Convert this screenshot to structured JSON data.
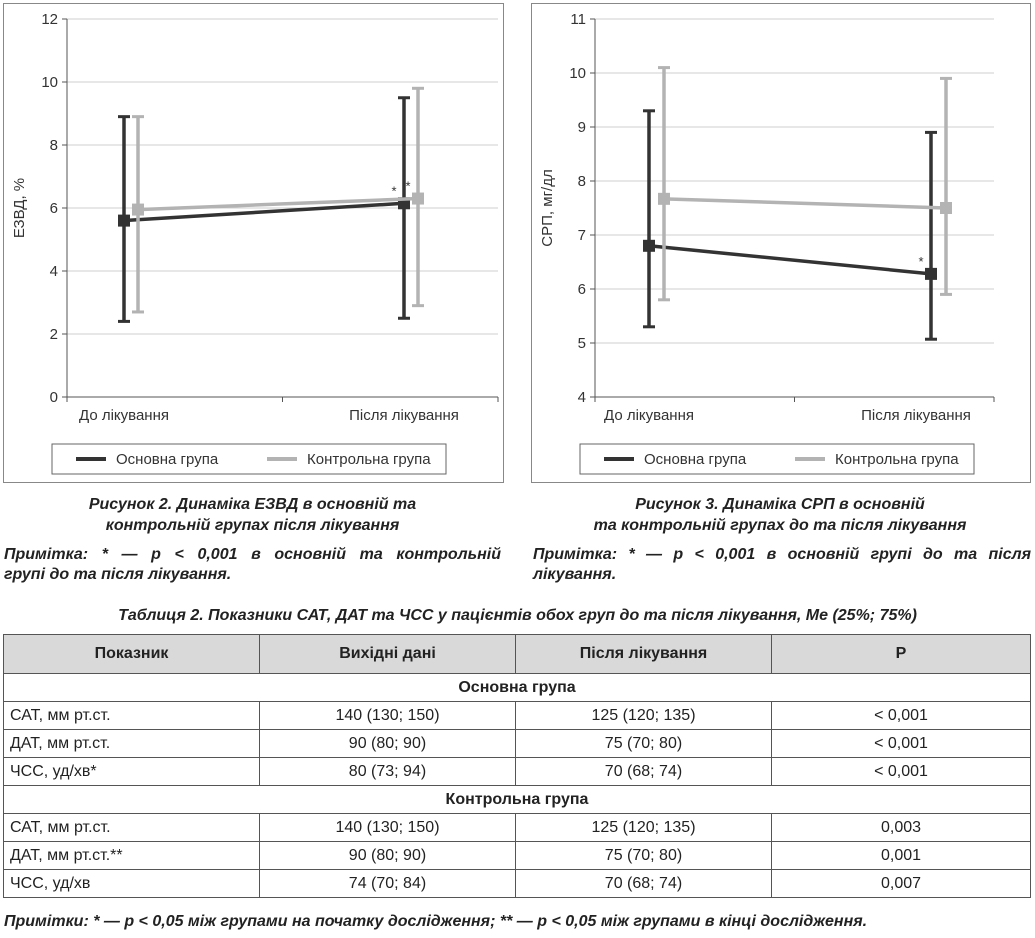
{
  "figure2": {
    "caption_line1": "Рисунок 2. Динаміка ЕЗВД в основній та",
    "caption_line2": "контрольній групах після лікування",
    "note_line1": "Примітка: * — р < 0,001 в основній та контрольній",
    "note_line2": "групі до та після лікування."
  },
  "figure3": {
    "caption_line1": "Рисунок 3.  Динаміка СРП в основній",
    "caption_line2": "та контрольній групах до та після лікування",
    "note_line1": "Примітка: * — р < 0,001 в основній групі до та після",
    "note_line2": "лікування."
  },
  "chart_data": [
    {
      "type": "line",
      "ylabel": "ЕЗВД, %",
      "ylim": [
        0,
        12
      ],
      "yticks": [
        0,
        2,
        4,
        6,
        8,
        10,
        12
      ],
      "categories": [
        "До лікування",
        "Після лікування"
      ],
      "grid": true,
      "legend": "bottom",
      "series": [
        {
          "name": "Основна група",
          "color": "#333333",
          "values": [
            5.6,
            6.15
          ],
          "lower": [
            2.4,
            2.5
          ],
          "upper": [
            8.9,
            9.5
          ],
          "annotations": [
            "",
            "*"
          ]
        },
        {
          "name": "Контрольна група",
          "color": "#b3b3b3",
          "values": [
            5.95,
            6.3
          ],
          "lower": [
            2.7,
            2.9
          ],
          "upper": [
            8.9,
            9.8
          ],
          "annotations": [
            "",
            "*"
          ]
        }
      ]
    },
    {
      "type": "line",
      "ylabel": "СРП, мг/дл",
      "ylim": [
        4,
        11
      ],
      "yticks": [
        4,
        5,
        6,
        7,
        8,
        9,
        10,
        11
      ],
      "categories": [
        "До лікування",
        "Після лікування"
      ],
      "grid": true,
      "legend": "bottom",
      "series": [
        {
          "name": "Основна група",
          "color": "#333333",
          "values": [
            6.8,
            6.28
          ],
          "lower": [
            5.3,
            5.07
          ],
          "upper": [
            9.3,
            8.9
          ],
          "annotations": [
            "",
            "*"
          ]
        },
        {
          "name": "Контрольна група",
          "color": "#b3b3b3",
          "values": [
            7.67,
            7.5
          ],
          "lower": [
            5.8,
            5.9
          ],
          "upper": [
            10.1,
            9.9
          ],
          "annotations": [
            "",
            ""
          ]
        }
      ]
    }
  ],
  "table": {
    "title": "Таблиця 2. Показники САТ, ДАТ та ЧСС у пацієнтів обох груп до та після лікування, Ме (25%; 75%)",
    "headers": [
      "Показник",
      "Вихідні дані",
      "Після лікування",
      "Р"
    ],
    "groups": [
      {
        "name": "Основна група",
        "rows": [
          [
            "САТ, мм рт.ст.",
            "140 (130; 150)",
            "125 (120; 135)",
            "< 0,001"
          ],
          [
            "ДАТ, мм рт.ст.",
            "90 (80; 90)",
            "75 (70; 80)",
            "< 0,001"
          ],
          [
            "ЧСС, уд/хв*",
            "80 (73; 94)",
            "70 (68; 74)",
            "< 0,001"
          ]
        ]
      },
      {
        "name": "Контрольна група",
        "rows": [
          [
            "САТ, мм рт.ст.",
            "140 (130; 150)",
            "125 (120; 135)",
            "0,003"
          ],
          [
            "ДАТ, мм рт.ст.**",
            "90 (80; 90)",
            "75 (70; 80)",
            "0,001"
          ],
          [
            "ЧСС, уд/хв",
            "74 (70; 84)",
            "70 (68; 74)",
            "0,007"
          ]
        ]
      }
    ],
    "footnote": "Примітки: * — р < 0,05 між групами на початку дослідження; ** — р < 0,05 між групами в кінці дослідження."
  }
}
